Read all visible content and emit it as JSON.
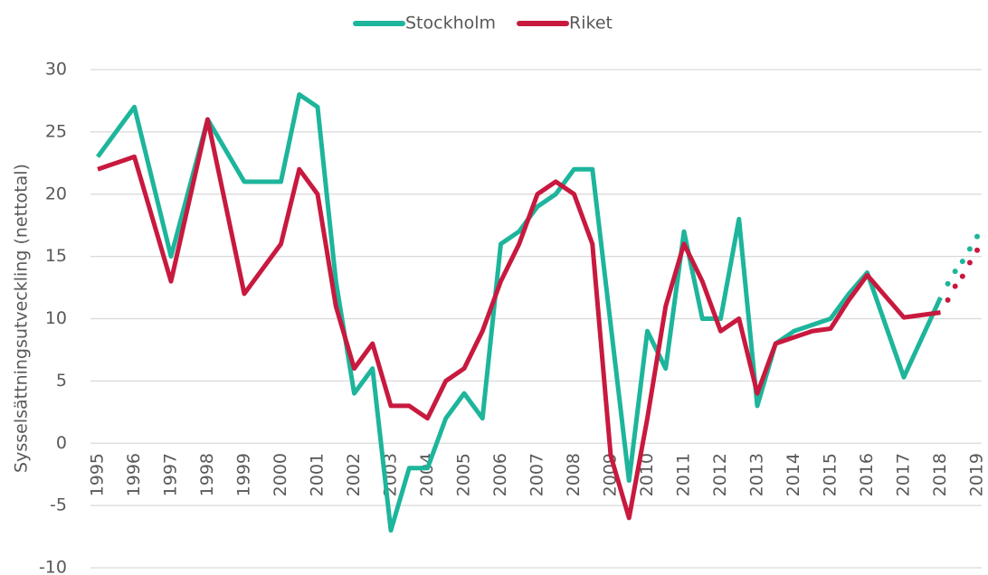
{
  "chart_data": {
    "type": "line",
    "y_label": "Sysselsättningsutveckling (nettotal)",
    "x": [
      1995,
      1996,
      1997,
      1998,
      1999,
      2000,
      2000.5,
      2001,
      2001.5,
      2002,
      2002.5,
      2003,
      2003.5,
      2004,
      2004.5,
      2005,
      2005.5,
      2006,
      2006.5,
      2007,
      2007.5,
      2008,
      2008.5,
      2009,
      2009.5,
      2010,
      2010.5,
      2011,
      2011.5,
      2012,
      2012.5,
      2013,
      2013.5,
      2014,
      2014.5,
      2015,
      2015.5,
      2016,
      2016.5,
      2017,
      2017.5,
      2018
    ],
    "series": [
      {
        "name": "Stockholm",
        "color": "#1db59b",
        "values": [
          23,
          27,
          15,
          26,
          21,
          21,
          28,
          27,
          13,
          4,
          6,
          -7,
          -2,
          -2,
          2,
          4,
          2,
          16,
          17,
          19,
          20,
          22,
          22,
          9.5,
          -3,
          9,
          6,
          17,
          10,
          10,
          18,
          3,
          8,
          9,
          9.5,
          10,
          12,
          13.7,
          9.5,
          5.3,
          8.5,
          11.7
        ],
        "forecast_values": [
          12.8,
          13.8,
          14.6,
          15.6,
          16.6
        ]
      },
      {
        "name": "Riket",
        "color": "#c8193e",
        "values": [
          22,
          23,
          13,
          26,
          12,
          16,
          22,
          20,
          11,
          6,
          8,
          3,
          3,
          2,
          5,
          6,
          9,
          13,
          16,
          20,
          21,
          20,
          16,
          -1,
          -6,
          2,
          11,
          16,
          13,
          9,
          10,
          4,
          8,
          8.5,
          9,
          9.2,
          11.5,
          13.5,
          11.8,
          10.1,
          10.3,
          10.5
        ],
        "forecast_values": [
          11.5,
          12.6,
          13.4,
          14.5,
          15.5
        ]
      }
    ],
    "forecast_x": [
      2018.2,
      2018.4,
      2018.6,
      2018.8,
      2019
    ],
    "xlim": [
      1995,
      2019
    ],
    "xticks": [
      1995,
      1996,
      1997,
      1998,
      1999,
      2000,
      2001,
      2002,
      2003,
      2004,
      2005,
      2006,
      2007,
      2008,
      2009,
      2010,
      2011,
      2012,
      2013,
      2014,
      2015,
      2016,
      2017,
      2018,
      2019
    ],
    "ylim": [
      -10,
      30
    ],
    "yticks": [
      -10,
      -5,
      0,
      5,
      10,
      15,
      20,
      25,
      30
    ],
    "grid": true,
    "legend": "top"
  }
}
